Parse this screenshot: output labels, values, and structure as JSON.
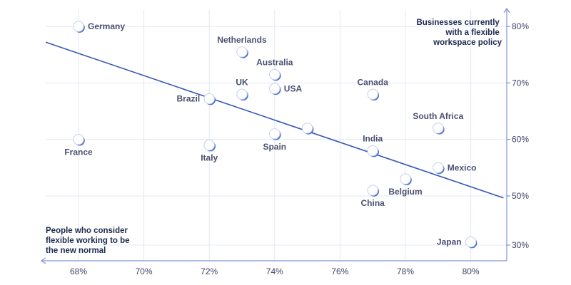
{
  "chart_data": {
    "type": "scatter",
    "xlabel": "People who consider flexible working to be the new normal",
    "xlabel_lines": [
      "People who consider",
      "flexible working to be",
      "the new normal"
    ],
    "ylabel": "Businesses currently with a flexible workspace policy",
    "ylabel_lines": [
      "Businesses currently",
      "with a flexible",
      "workspace policy"
    ],
    "x_ticks": [
      {
        "value": 68,
        "label": "68%"
      },
      {
        "value": 70,
        "label": "70%"
      },
      {
        "value": 72,
        "label": "72%"
      },
      {
        "value": 74,
        "label": "74%"
      },
      {
        "value": 76,
        "label": "76%"
      },
      {
        "value": 78,
        "label": "78%"
      },
      {
        "value": 80,
        "label": "80%"
      }
    ],
    "y_ticks": [
      {
        "value": 80,
        "label": "80%"
      },
      {
        "value": 70,
        "label": "70%"
      },
      {
        "value": 60,
        "label": "60%"
      },
      {
        "value": 50,
        "label": "50%"
      },
      {
        "value": 30,
        "label": "30%"
      }
    ],
    "xlim": [
      67,
      81
    ],
    "ylim": [
      28,
      83
    ],
    "y_axis_break": true,
    "grid": true,
    "points": [
      {
        "label": "Germany",
        "x": 68,
        "y": 80,
        "label_pos": "right"
      },
      {
        "label": "France",
        "x": 68,
        "y": 60,
        "label_pos": "below"
      },
      {
        "label": "Netherlands",
        "x": 73,
        "y": 75.5,
        "label_pos": "above"
      },
      {
        "label": "Australia",
        "x": 74,
        "y": 71.5,
        "label_pos": "above"
      },
      {
        "label": "UK",
        "x": 73,
        "y": 68,
        "label_pos": "above"
      },
      {
        "label": "USA",
        "x": 74,
        "y": 69,
        "label_pos": "right"
      },
      {
        "label": "Brazil",
        "x": 72,
        "y": 67.2,
        "label_pos": "left"
      },
      {
        "label": "Italy",
        "x": 72,
        "y": 59,
        "label_pos": "below"
      },
      {
        "label": "Spain",
        "x": 74,
        "y": 61,
        "label_pos": "below"
      },
      {
        "label": "",
        "x": 75,
        "y": 62,
        "label_pos": "none"
      },
      {
        "label": "Canada",
        "x": 77,
        "y": 68,
        "label_pos": "above"
      },
      {
        "label": "South Africa",
        "x": 79,
        "y": 62,
        "label_pos": "above"
      },
      {
        "label": "India",
        "x": 77,
        "y": 58,
        "label_pos": "above"
      },
      {
        "label": "Belgium",
        "x": 78,
        "y": 53,
        "label_pos": "below"
      },
      {
        "label": "China",
        "x": 77,
        "y": 51,
        "label_pos": "below"
      },
      {
        "label": "Mexico",
        "x": 79,
        "y": 55,
        "label_pos": "right"
      },
      {
        "label": "Japan",
        "x": 80,
        "y": 31.3,
        "label_pos": "left"
      }
    ],
    "trendline": {
      "x": [
        67,
        81
      ],
      "y": [
        77.2,
        49.2
      ]
    }
  },
  "colors": {
    "axis": "#7f95d2",
    "grid": "#e3e8f3",
    "trend": "#3557b8",
    "point_fill": "#ffffff",
    "point_edge": "#4a6fd0",
    "label": "#4a5070"
  }
}
